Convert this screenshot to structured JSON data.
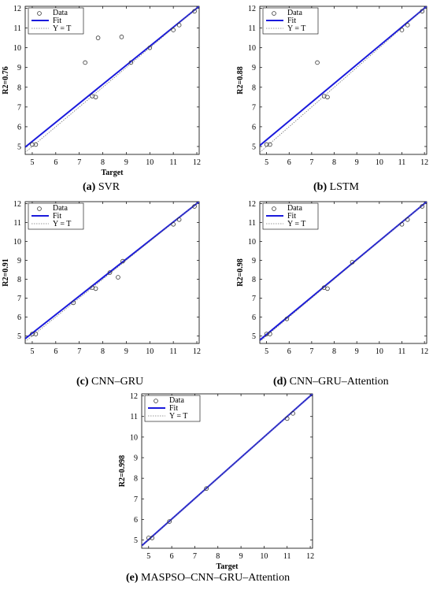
{
  "chart_data": [
    {
      "type": "scatter",
      "panel_letter": "(a)",
      "caption": "SVR",
      "xlabel": "Target",
      "ylabel": "R2=0.76",
      "xlim": [
        4.7,
        12.1
      ],
      "ylim": [
        4.6,
        12.1
      ],
      "xticks": [
        5,
        6,
        7,
        8,
        9,
        10,
        11,
        12
      ],
      "yticks": [
        5,
        6,
        7,
        8,
        9,
        10,
        11,
        12
      ],
      "legend": [
        "Data",
        "Fit",
        "Y = T"
      ],
      "legend_position": "top-left",
      "series": [
        {
          "name": "Data",
          "kind": "points",
          "x": [
            5.0,
            5.15,
            7.25,
            7.55,
            7.7,
            7.8,
            8.8,
            9.2,
            10.0,
            11.0,
            11.25,
            11.9
          ],
          "y": [
            5.1,
            5.1,
            9.25,
            7.55,
            7.5,
            10.5,
            10.55,
            9.25,
            10.0,
            10.9,
            11.15,
            11.85
          ]
        },
        {
          "name": "Fit",
          "kind": "line",
          "x": [
            4.7,
            12.1
          ],
          "y": [
            4.97,
            12.1
          ]
        },
        {
          "name": "Y = T",
          "kind": "line",
          "x": [
            4.7,
            12.1
          ],
          "y": [
            4.7,
            12.1
          ]
        }
      ]
    },
    {
      "type": "scatter",
      "panel_letter": "(b)",
      "caption": "LSTM",
      "xlabel": "",
      "ylabel": "R2=0.88",
      "xlim": [
        4.7,
        12.1
      ],
      "ylim": [
        4.6,
        12.1
      ],
      "xticks": [
        5,
        6,
        7,
        8,
        9,
        10,
        11,
        12
      ],
      "yticks": [
        5,
        6,
        7,
        8,
        9,
        10,
        11,
        12
      ],
      "legend": [
        "Data",
        "Fit",
        "Y = T"
      ],
      "legend_position": "top-left",
      "series": [
        {
          "name": "Data",
          "kind": "points",
          "x": [
            5.0,
            5.15,
            7.25,
            7.55,
            7.7,
            11.0,
            11.25,
            11.9
          ],
          "y": [
            5.1,
            5.1,
            9.25,
            7.55,
            7.5,
            10.9,
            11.15,
            11.85
          ]
        },
        {
          "name": "Fit",
          "kind": "line",
          "x": [
            4.7,
            12.1
          ],
          "y": [
            5.05,
            12.1
          ]
        },
        {
          "name": "Y = T",
          "kind": "line",
          "x": [
            4.7,
            12.1
          ],
          "y": [
            4.7,
            12.1
          ]
        }
      ]
    },
    {
      "type": "scatter",
      "panel_letter": "(c)",
      "caption": "CNN–GRU",
      "xlabel": "",
      "ylabel": "R2=0.91",
      "xlim": [
        4.7,
        12.1
      ],
      "ylim": [
        4.6,
        12.1
      ],
      "xticks": [
        5,
        6,
        7,
        8,
        9,
        10,
        11,
        12
      ],
      "yticks": [
        5,
        6,
        7,
        8,
        9,
        10,
        11,
        12
      ],
      "legend": [
        "Data",
        "Fit",
        "Y = T"
      ],
      "legend_position": "top-left",
      "series": [
        {
          "name": "Data",
          "kind": "points",
          "x": [
            5.0,
            5.15,
            6.75,
            7.55,
            7.7,
            8.3,
            8.65,
            8.85,
            11.0,
            11.25,
            11.9
          ],
          "y": [
            5.1,
            5.1,
            6.75,
            7.55,
            7.5,
            8.35,
            8.1,
            8.95,
            10.9,
            11.15,
            11.85
          ]
        },
        {
          "name": "Fit",
          "kind": "line",
          "x": [
            4.7,
            12.1
          ],
          "y": [
            4.85,
            12.1
          ]
        },
        {
          "name": "Y = T",
          "kind": "line",
          "x": [
            4.7,
            12.1
          ],
          "y": [
            4.7,
            12.1
          ]
        }
      ]
    },
    {
      "type": "scatter",
      "panel_letter": "(d)",
      "caption": "CNN–GRU–Attention",
      "xlabel": "",
      "ylabel": "R2=0.98",
      "xlim": [
        4.7,
        12.1
      ],
      "ylim": [
        4.6,
        12.1
      ],
      "xticks": [
        5,
        6,
        7,
        8,
        9,
        10,
        11,
        12
      ],
      "yticks": [
        5,
        6,
        7,
        8,
        9,
        10,
        11,
        12
      ],
      "legend": [
        "Data",
        "Fit",
        "Y = T"
      ],
      "legend_position": "top-left",
      "series": [
        {
          "name": "Data",
          "kind": "points",
          "x": [
            5.0,
            5.15,
            5.9,
            7.55,
            7.7,
            8.8,
            11.0,
            11.25,
            11.9
          ],
          "y": [
            5.1,
            5.1,
            5.9,
            7.55,
            7.5,
            8.9,
            10.9,
            11.15,
            11.85
          ]
        },
        {
          "name": "Fit",
          "kind": "line",
          "x": [
            4.7,
            12.1
          ],
          "y": [
            4.78,
            12.1
          ]
        },
        {
          "name": "Y = T",
          "kind": "line",
          "x": [
            4.7,
            12.1
          ],
          "y": [
            4.7,
            12.1
          ]
        }
      ]
    },
    {
      "type": "scatter",
      "panel_letter": "(e)",
      "caption": "MASPSO–CNN–GRU–Attention",
      "xlabel": "Target",
      "ylabel": "R2=0.998",
      "xlim": [
        4.7,
        12.1
      ],
      "ylim": [
        4.6,
        12.1
      ],
      "xticks": [
        5,
        6,
        7,
        8,
        9,
        10,
        11,
        12
      ],
      "yticks": [
        5,
        6,
        7,
        8,
        9,
        10,
        11,
        12
      ],
      "legend": [
        "Data",
        "Fit",
        "Y = T"
      ],
      "legend_position": "top-left",
      "series": [
        {
          "name": "Data",
          "kind": "points",
          "x": [
            5.0,
            5.15,
            5.9,
            7.5,
            11.0,
            11.25
          ],
          "y": [
            5.1,
            5.1,
            5.9,
            7.5,
            10.9,
            11.15
          ]
        },
        {
          "name": "Fit",
          "kind": "line",
          "x": [
            4.7,
            12.1
          ],
          "y": [
            4.72,
            12.1
          ]
        },
        {
          "name": "Y = T",
          "kind": "line",
          "x": [
            4.7,
            12.1
          ],
          "y": [
            4.7,
            12.1
          ]
        }
      ]
    }
  ],
  "colors": {
    "fit": "#1a1adc",
    "identity": "#777777",
    "data": "#333333"
  }
}
